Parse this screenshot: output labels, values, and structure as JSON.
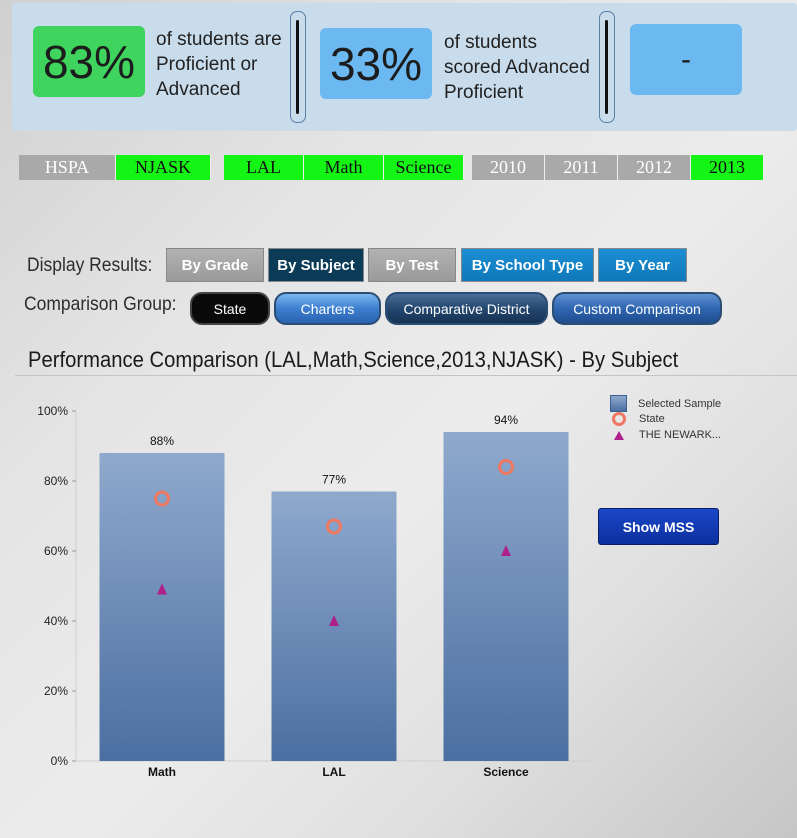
{
  "kpis": [
    {
      "value": "83%",
      "text": [
        "of students are",
        "Proficient or",
        "Advanced"
      ]
    },
    {
      "value": "33%",
      "text": [
        "of students",
        "scored Advanced",
        "Proficient"
      ]
    },
    {
      "value": "-"
    }
  ],
  "filters": {
    "tests": [
      "HSPA",
      "NJASK"
    ],
    "subjects": [
      "LAL",
      "Math",
      "Science"
    ],
    "years": [
      "2010",
      "2011",
      "2012",
      "2013"
    ]
  },
  "display_results": {
    "label": "Display Results:",
    "buttons": [
      "By Grade",
      "By Subject",
      "By Test",
      "By School Type",
      "By Year"
    ]
  },
  "comparison_group": {
    "label": "Comparison Group:",
    "buttons": [
      "State",
      "Charters",
      "Comparative District",
      "Custom Comparison"
    ]
  },
  "show_mss_label": "Show MSS",
  "colors": {
    "green": "#15f515",
    "grey": "#a9a9a9",
    "bar": "#6d8fbb",
    "state_marker": "#f07860",
    "district_marker": "#b0208a"
  },
  "chart_data": {
    "type": "bar",
    "title": "Performance Comparison (LAL,Math,Science,2013,NJASK) - By Subject",
    "categories": [
      "Math",
      "LAL",
      "Science"
    ],
    "series": [
      {
        "name": "Selected Sample",
        "type": "bar",
        "values": [
          88,
          77,
          94
        ],
        "data_labels": [
          "88%",
          "77%",
          "94%"
        ]
      },
      {
        "name": "State",
        "type": "marker",
        "marker": "circle",
        "values": [
          75,
          67,
          84
        ]
      },
      {
        "name": "THE NEWARK...",
        "type": "marker",
        "marker": "triangle",
        "values": [
          49,
          40,
          60
        ]
      }
    ],
    "ylim": [
      0,
      100
    ],
    "yticks": [
      "0%",
      "20%",
      "40%",
      "60%",
      "80%",
      "100%"
    ],
    "grid": false,
    "legend": "top-right"
  }
}
